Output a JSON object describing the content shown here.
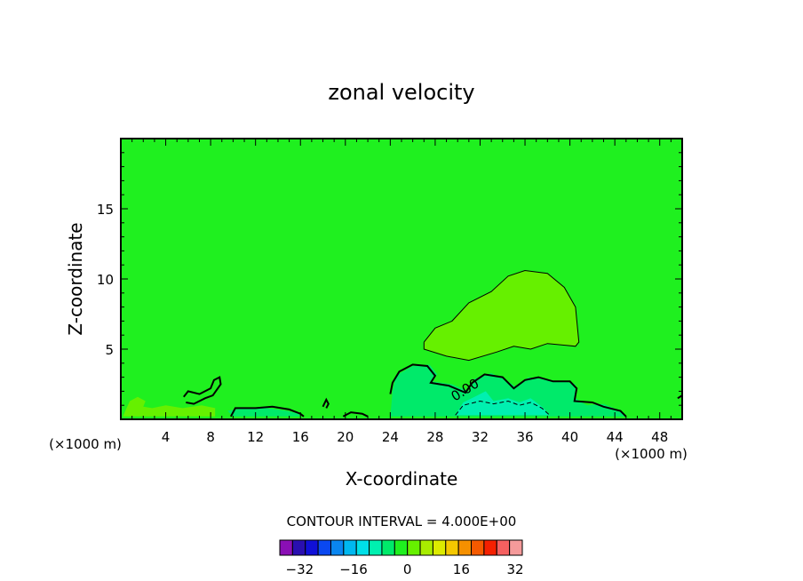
{
  "chart_data": {
    "type": "contour",
    "title": "zonal velocity",
    "xlabel": "X-coordinate",
    "ylabel": "Z-coordinate",
    "x_unit": "(×1000 m)",
    "xlim": [
      0,
      50
    ],
    "ylim": [
      0,
      20
    ],
    "x_ticks": [
      4,
      8,
      12,
      16,
      20,
      24,
      28,
      32,
      36,
      40,
      44,
      48
    ],
    "y_ticks": [
      5,
      10,
      15
    ],
    "contour_interval_text": "CONTOUR INTERVAL = 4.000E+00",
    "contour_interval": 4,
    "contour_label": "0.00",
    "background_color": "#1ff01f",
    "colorbar": {
      "tick_values": [
        -32,
        -16,
        0,
        16,
        32
      ],
      "tick_labels": [
        "−32",
        "−16",
        "0",
        "16",
        "32"
      ],
      "levels": [
        -36,
        -32,
        -28,
        -24,
        -20,
        -16,
        -12,
        -8,
        -4,
        0,
        4,
        8,
        12,
        16,
        20,
        24,
        28,
        32,
        36
      ],
      "colors": [
        "#8a0fb5",
        "#2a0fb0",
        "#1010d8",
        "#0a48f0",
        "#0a86f0",
        "#00b8f0",
        "#00e0e8",
        "#00f0b0",
        "#00ea6a",
        "#1ff01f",
        "#66f000",
        "#a8ec00",
        "#dceb00",
        "#f5c800",
        "#f59000",
        "#f55a00",
        "#f52000",
        "#f56060",
        "#f59a9a"
      ]
    },
    "regions": [
      {
        "name": "positive-region-upper",
        "value": 4,
        "color": "#66f000",
        "points": [
          [
            27,
            5.5
          ],
          [
            28,
            6.5
          ],
          [
            29.5,
            7.0
          ],
          [
            31,
            8.3
          ],
          [
            33,
            9.1
          ],
          [
            34.5,
            10.2
          ],
          [
            36,
            10.6
          ],
          [
            38,
            10.4
          ],
          [
            39.5,
            9.4
          ],
          [
            40.5,
            8.0
          ],
          [
            40.8,
            5.5
          ],
          [
            40.5,
            5.2
          ],
          [
            38,
            5.4
          ],
          [
            36.5,
            5.0
          ],
          [
            35,
            5.2
          ],
          [
            33.5,
            4.8
          ],
          [
            31,
            4.2
          ],
          [
            29,
            4.5
          ],
          [
            27,
            5.0
          ]
        ]
      },
      {
        "name": "negative-region",
        "value": -4,
        "color": "#00ea6a",
        "points": [
          [
            24.2,
            2.0
          ],
          [
            24.5,
            3.1
          ],
          [
            26,
            3.8
          ],
          [
            27.5,
            3.9
          ],
          [
            28.2,
            3.2
          ],
          [
            27.7,
            2.7
          ],
          [
            29.5,
            2.5
          ],
          [
            31,
            2.0
          ],
          [
            31.5,
            2.9
          ],
          [
            33,
            3.3
          ],
          [
            34.5,
            2.7
          ],
          [
            35.2,
            2.3
          ],
          [
            36.3,
            3.0
          ],
          [
            38,
            2.8
          ],
          [
            39.5,
            2.7
          ],
          [
            40.5,
            2.5
          ],
          [
            40.5,
            1.5
          ],
          [
            41.5,
            1.0
          ],
          [
            43,
            1.1
          ],
          [
            44.5,
            0.6
          ],
          [
            45,
            0.2
          ],
          [
            24,
            0.2
          ]
        ]
      },
      {
        "name": "strong-negative-region",
        "value": -8,
        "color": "#00f0b0",
        "points": [
          [
            29.8,
            0.3
          ],
          [
            30.5,
            1.2
          ],
          [
            31.5,
            1.6
          ],
          [
            32.5,
            2.0
          ],
          [
            33.2,
            1.3
          ],
          [
            34.5,
            1.5
          ],
          [
            35.5,
            1.2
          ],
          [
            36.5,
            1.5
          ],
          [
            37.5,
            0.9
          ],
          [
            38.2,
            0.3
          ]
        ]
      },
      {
        "name": "negative-region-left",
        "value": -4,
        "color": "#00ea6a",
        "points": [
          [
            9.5,
            0.6
          ],
          [
            11,
            0.8
          ],
          [
            13,
            0.8
          ],
          [
            14.8,
            0.6
          ],
          [
            15.8,
            0.4
          ],
          [
            16,
            0.2
          ],
          [
            10,
            0.2
          ]
        ]
      },
      {
        "name": "positive-patch-left",
        "value": 4,
        "color": "#66f000",
        "points": [
          [
            0.8,
            1.3
          ],
          [
            1.5,
            1.6
          ],
          [
            2.2,
            1.3
          ],
          [
            2,
            0.9
          ],
          [
            2.8,
            0.8
          ],
          [
            4,
            1.0
          ],
          [
            5.5,
            0.8
          ],
          [
            7.2,
            1.0
          ],
          [
            8.4,
            0.8
          ],
          [
            8.4,
            0.2
          ],
          [
            0.2,
            0.2
          ],
          [
            0.4,
            0.6
          ]
        ]
      }
    ],
    "contour_lines": [
      {
        "name": "zero-contour-left-loop",
        "value": 0,
        "points": [
          [
            5.6,
            1.6
          ],
          [
            6,
            2.0
          ],
          [
            7,
            1.8
          ],
          [
            8,
            2.2
          ],
          [
            8.3,
            2.8
          ],
          [
            8.8,
            3.0
          ],
          [
            8.9,
            2.5
          ],
          [
            8.2,
            1.7
          ],
          [
            7.5,
            1.5
          ],
          [
            6.5,
            1.1
          ],
          [
            5.8,
            1.2
          ]
        ]
      },
      {
        "name": "zero-contour-bottom-left",
        "value": 0,
        "points": [
          [
            9.8,
            0.2
          ],
          [
            10.2,
            0.8
          ],
          [
            12,
            0.8
          ],
          [
            13.5,
            0.9
          ],
          [
            15,
            0.7
          ],
          [
            16,
            0.4
          ],
          [
            16.3,
            0.2
          ]
        ]
      },
      {
        "name": "zero-contour-mid",
        "value": 0,
        "points": [
          [
            19.8,
            0.2
          ],
          [
            20.5,
            0.5
          ],
          [
            21.5,
            0.4
          ],
          [
            22,
            0.2
          ]
        ]
      },
      {
        "name": "zero-contour-small-loop",
        "value": 0,
        "points": [
          [
            18,
            0.9
          ],
          [
            18.3,
            1.4
          ],
          [
            18.5,
            1.1
          ],
          [
            18.3,
            0.8
          ]
        ]
      },
      {
        "name": "zero-contour-right",
        "value": 0,
        "points": [
          [
            24,
            1.8
          ],
          [
            24.2,
            2.6
          ],
          [
            24.8,
            3.4
          ],
          [
            26,
            3.9
          ],
          [
            27.3,
            3.8
          ],
          [
            28,
            3.1
          ],
          [
            27.6,
            2.6
          ],
          [
            29.2,
            2.4
          ],
          [
            30.7,
            1.9
          ],
          [
            31.3,
            2.6
          ],
          [
            32.4,
            3.2
          ],
          [
            34,
            3.0
          ],
          [
            35,
            2.2
          ],
          [
            36,
            2.8
          ],
          [
            37.2,
            3.0
          ],
          [
            38.5,
            2.7
          ],
          [
            40,
            2.7
          ],
          [
            40.6,
            2.2
          ],
          [
            40.4,
            1.3
          ],
          [
            42,
            1.2
          ],
          [
            43,
            0.9
          ],
          [
            44.5,
            0.6
          ],
          [
            45,
            0.2
          ]
        ]
      },
      {
        "name": "zero-contour-far-right",
        "value": 0,
        "points": [
          [
            49.6,
            1.5
          ],
          [
            50,
            1.7
          ]
        ]
      },
      {
        "name": "positive-contour-upper",
        "value": 4,
        "points": [
          [
            27,
            5.5
          ],
          [
            28,
            6.5
          ],
          [
            29.5,
            7.0
          ],
          [
            31,
            8.3
          ],
          [
            33,
            9.1
          ],
          [
            34.5,
            10.2
          ],
          [
            36,
            10.6
          ],
          [
            38,
            10.4
          ],
          [
            39.5,
            9.4
          ],
          [
            40.5,
            8.0
          ],
          [
            40.8,
            5.5
          ],
          [
            40.5,
            5.2
          ],
          [
            38,
            5.4
          ],
          [
            36.5,
            5.0
          ],
          [
            35,
            5.2
          ],
          [
            33.5,
            4.8
          ],
          [
            31,
            4.2
          ],
          [
            29,
            4.5
          ],
          [
            27,
            5.0
          ],
          [
            27,
            5.5
          ]
        ]
      },
      {
        "name": "negative-contour-dashed",
        "value": -4,
        "dashed": true,
        "points": [
          [
            29.8,
            0.3
          ],
          [
            30.5,
            1.0
          ],
          [
            32,
            1.3
          ],
          [
            33.2,
            1.1
          ],
          [
            34.5,
            1.3
          ],
          [
            35.5,
            1.0
          ],
          [
            36.5,
            1.2
          ],
          [
            37.5,
            0.8
          ],
          [
            38.2,
            0.3
          ]
        ]
      }
    ]
  }
}
